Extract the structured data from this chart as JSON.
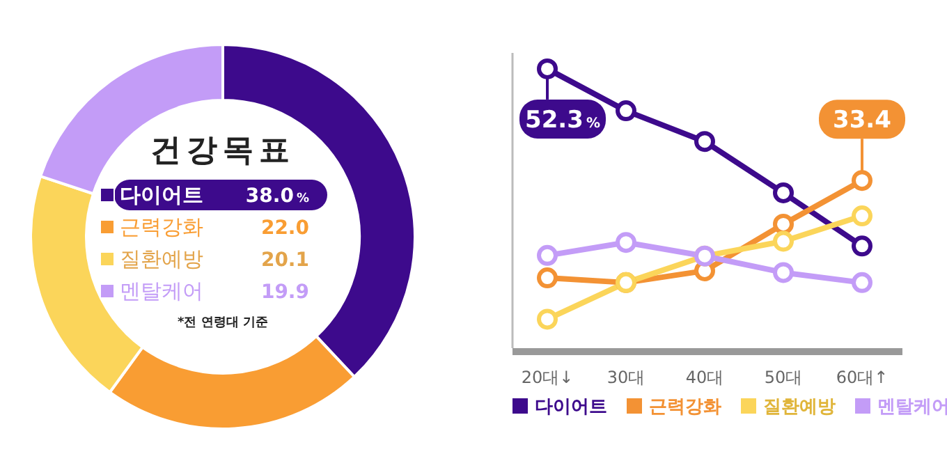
{
  "chart_data": [
    {
      "type": "donut",
      "title": "건강목표",
      "categories": [
        "다이어트",
        "근력강화",
        "질환예방",
        "멘탈케어"
      ],
      "values": [
        38.0,
        22.0,
        20.1,
        19.9
      ],
      "colors": [
        "#3d0a8c",
        "#f99d33",
        "#fbd55a",
        "#c39cf7"
      ],
      "value_labels": [
        "38.0%",
        "22.0",
        "20.1",
        "19.9"
      ],
      "legend": "center",
      "annotations": [
        "*전 연령대 기준"
      ]
    },
    {
      "type": "line",
      "categories": [
        "20대↓",
        "30대",
        "40대",
        "50대",
        "60대↑"
      ],
      "ylim": [
        5,
        55
      ],
      "tick_labels": "x",
      "legend": "bottom",
      "marker": "circle",
      "series": [
        {
          "name": "다이어트",
          "color": "#3d0a8c",
          "values": [
            52.3,
            45.2,
            40.0,
            31.3,
            22.3
          ],
          "value_labels": [
            "52.3%",
            null,
            null,
            null,
            null
          ]
        },
        {
          "name": "근력강화",
          "color": "#f39234",
          "values": [
            16.9,
            16.1,
            18.1,
            26.0,
            33.4
          ],
          "value_labels": [
            null,
            null,
            null,
            null,
            "33.4"
          ]
        },
        {
          "name": "질환예방",
          "color": "#fbd55a",
          "values": [
            9.9,
            16.1,
            20.6,
            23.1,
            27.4
          ]
        },
        {
          "name": "멘탈케어",
          "color": "#c39cf7",
          "values": [
            20.7,
            22.9,
            20.6,
            17.8,
            16.1
          ]
        }
      ]
    }
  ]
}
